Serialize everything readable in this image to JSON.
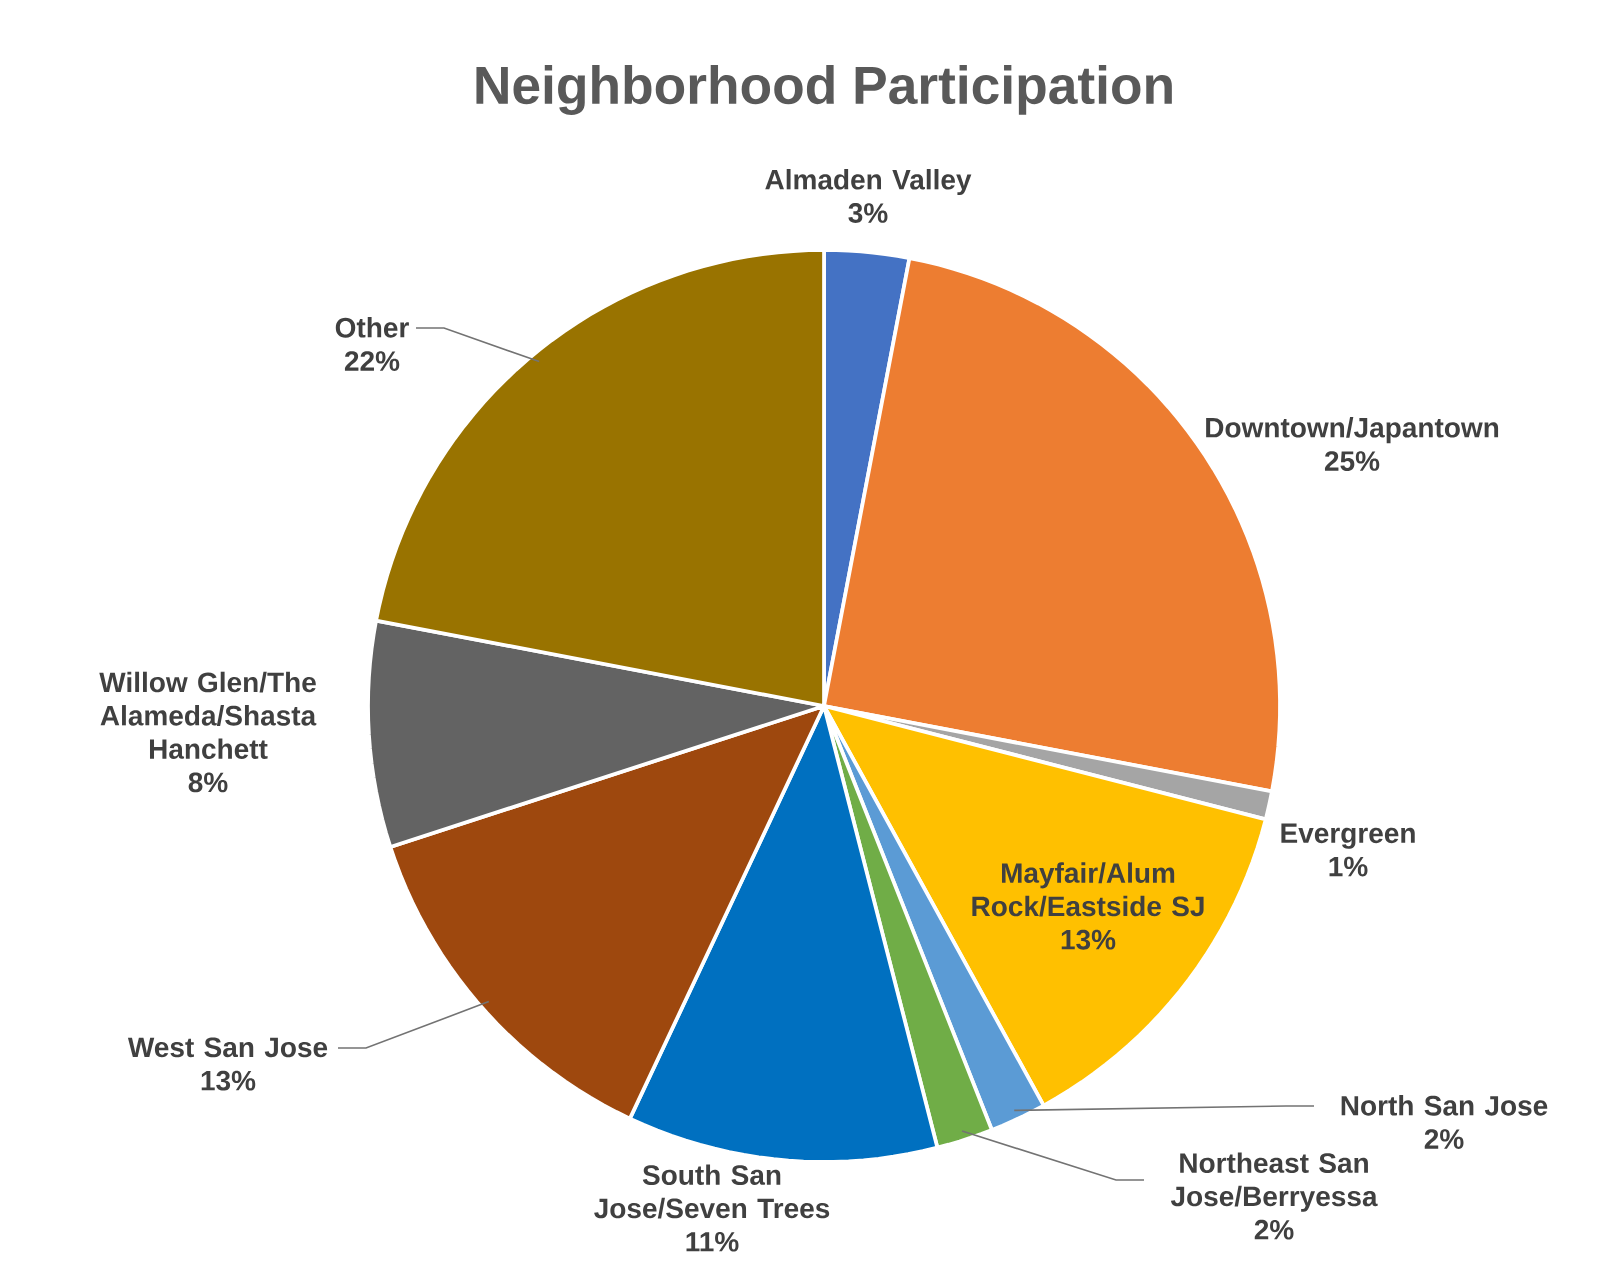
{
  "chart_data": {
    "type": "pie",
    "title": "Neighborhood Participation",
    "categories": [
      "Almaden Valley",
      "Downtown/Japantown",
      "Evergreen",
      "Mayfair/Alum Rock/Eastside SJ",
      "North San Jose",
      "Northeast San Jose/Berryessa",
      "South San Jose/Seven Trees",
      "West San Jose",
      "Willow Glen/The Alameda/Shasta Hanchett",
      "Other"
    ],
    "values": [
      3,
      25,
      1,
      13,
      2,
      2,
      11,
      13,
      8,
      22
    ],
    "value_labels": [
      "3%",
      "25%",
      "1%",
      "13%",
      "2%",
      "2%",
      "11%",
      "13%",
      "8%",
      "22%"
    ],
    "colors": [
      "#4472c4",
      "#ed7d31",
      "#a5a5a5",
      "#ffc000",
      "#5b9bd5",
      "#70ad47",
      "#0070c0",
      "#9e480e",
      "#636363",
      "#997300"
    ]
  }
}
